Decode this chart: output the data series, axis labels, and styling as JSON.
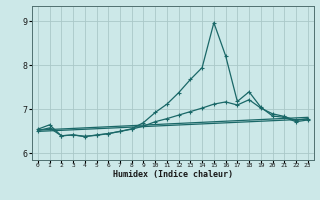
{
  "xlabel": "Humidex (Indice chaleur)",
  "bg_color": "#cce8e8",
  "grid_color": "#aac8c8",
  "line_color": "#1a6868",
  "xlim": [
    -0.5,
    23.5
  ],
  "ylim": [
    5.85,
    9.35
  ],
  "yticks": [
    6,
    7,
    8,
    9
  ],
  "xticks": [
    0,
    1,
    2,
    3,
    4,
    5,
    6,
    7,
    8,
    9,
    10,
    11,
    12,
    13,
    14,
    15,
    16,
    17,
    18,
    19,
    20,
    21,
    22,
    23
  ],
  "line1_x": [
    0,
    1,
    2,
    3,
    4,
    5,
    6,
    7,
    8,
    9,
    10,
    11,
    12,
    13,
    14,
    15,
    16,
    17,
    18,
    19,
    20,
    21,
    22,
    23
  ],
  "line1_y": [
    6.55,
    6.65,
    6.4,
    6.42,
    6.38,
    6.42,
    6.45,
    6.5,
    6.56,
    6.7,
    6.93,
    7.12,
    7.38,
    7.68,
    7.95,
    8.97,
    8.22,
    7.18,
    7.4,
    7.05,
    6.85,
    6.82,
    6.72,
    6.76
  ],
  "line2_x": [
    0,
    1,
    2,
    3,
    4,
    5,
    6,
    7,
    8,
    9,
    10,
    11,
    12,
    13,
    14,
    15,
    16,
    17,
    18,
    19,
    20,
    21,
    22,
    23
  ],
  "line2_y": [
    6.52,
    6.58,
    6.4,
    6.42,
    6.39,
    6.41,
    6.45,
    6.5,
    6.55,
    6.62,
    6.72,
    6.79,
    6.87,
    6.95,
    7.03,
    7.12,
    7.17,
    7.1,
    7.22,
    7.03,
    6.9,
    6.84,
    6.75,
    6.79
  ],
  "line3_x": [
    0,
    23
  ],
  "line3_y": [
    6.5,
    6.78
  ],
  "line4_x": [
    0,
    23
  ],
  "line4_y": [
    6.53,
    6.82
  ],
  "markersize": 3,
  "linewidth": 0.9
}
